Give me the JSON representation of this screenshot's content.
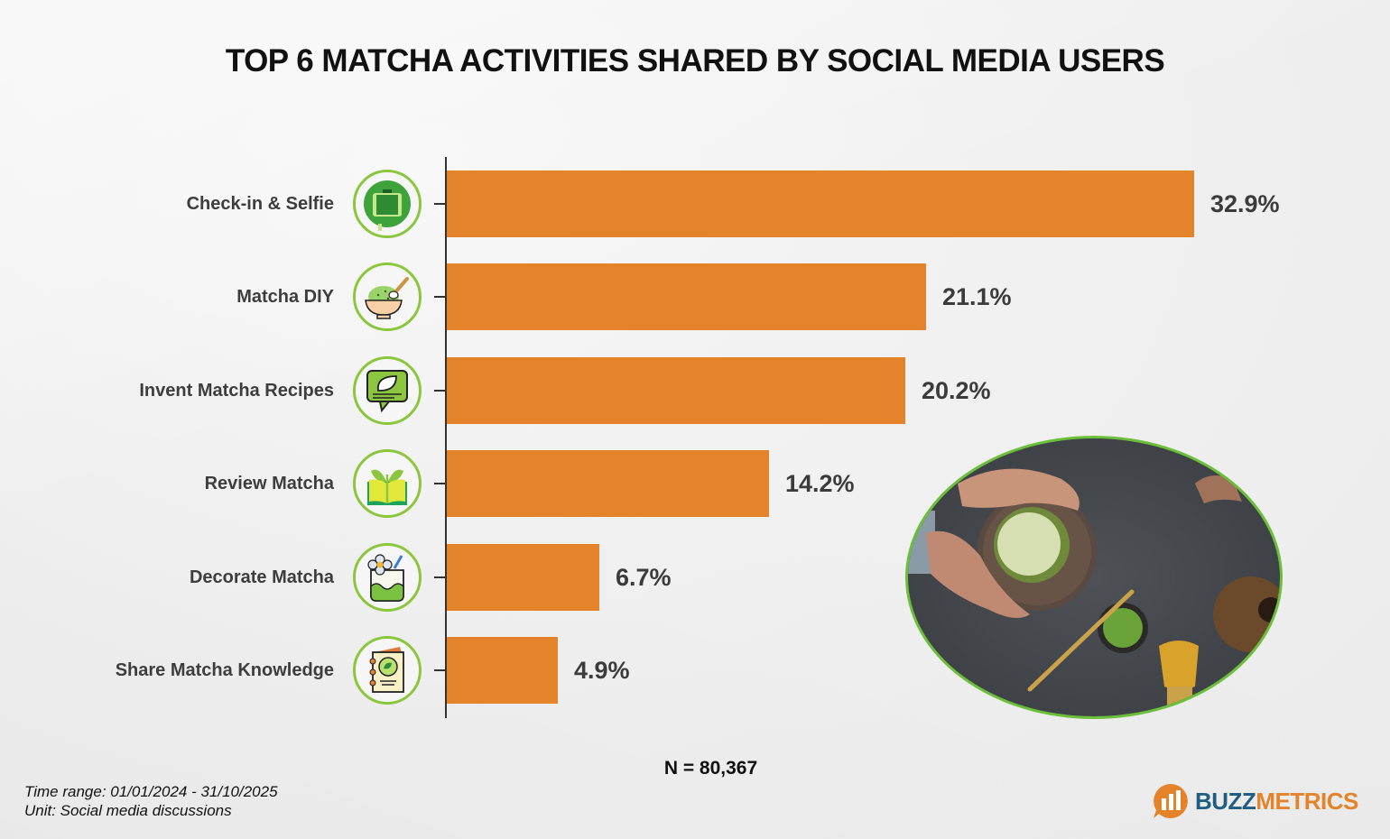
{
  "title": "TOP 6 MATCHA ACTIVITIES SHARED BY SOCIAL MEDIA USERS",
  "colors": {
    "bar": "#e5832b",
    "icon_ring": "#8cc63f",
    "photo_ring": "#6cbf3a",
    "brand_blue": "#1f5d82",
    "brand_orange": "#e5832b"
  },
  "rows": [
    {
      "label": "Check-in & Selfie",
      "value": 32.9,
      "display": "32.9%",
      "icon": "phone-selfie-icon"
    },
    {
      "label": "Matcha DIY",
      "value": 21.1,
      "display": "21.1%",
      "icon": "matcha-bowl-whisk-icon"
    },
    {
      "label": "Invent Matcha Recipes",
      "value": 20.2,
      "display": "20.2%",
      "icon": "leaf-chat-bubble-icon"
    },
    {
      "label": "Review Matcha",
      "value": 14.2,
      "display": "14.2%",
      "icon": "sprout-book-icon"
    },
    {
      "label": "Decorate Matcha",
      "value": 6.7,
      "display": "6.7%",
      "icon": "decorated-cup-icon"
    },
    {
      "label": "Share Matcha Knowledge",
      "value": 4.9,
      "display": "4.9%",
      "icon": "matcha-notebook-icon"
    }
  ],
  "sample_size": "N = 80,367",
  "footnote": {
    "time_range": "Time range: 01/01/2024 - 31/10/2025",
    "unit": "Unit: Social media discussions"
  },
  "logo": {
    "part1": "BUZZ",
    "part2": "METRICS"
  },
  "chart_data": {
    "type": "bar",
    "orientation": "horizontal",
    "title": "TOP 6 MATCHA ACTIVITIES SHARED BY SOCIAL MEDIA USERS",
    "categories": [
      "Check-in & Selfie",
      "Matcha DIY",
      "Invent Matcha Recipes",
      "Review Matcha",
      "Decorate Matcha",
      "Share Matcha Knowledge"
    ],
    "values": [
      32.9,
      21.1,
      20.2,
      14.2,
      6.7,
      4.9
    ],
    "value_labels": [
      "32.9%",
      "21.1%",
      "20.2%",
      "14.2%",
      "6.7%",
      "4.9%"
    ],
    "unit": "%",
    "xlabel": "",
    "ylabel": "",
    "grid": false,
    "legend": null,
    "annotations": [
      "N = 80,367",
      "Time range: 01/01/2024 - 31/10/2025",
      "Unit: Social media discussions"
    ]
  }
}
